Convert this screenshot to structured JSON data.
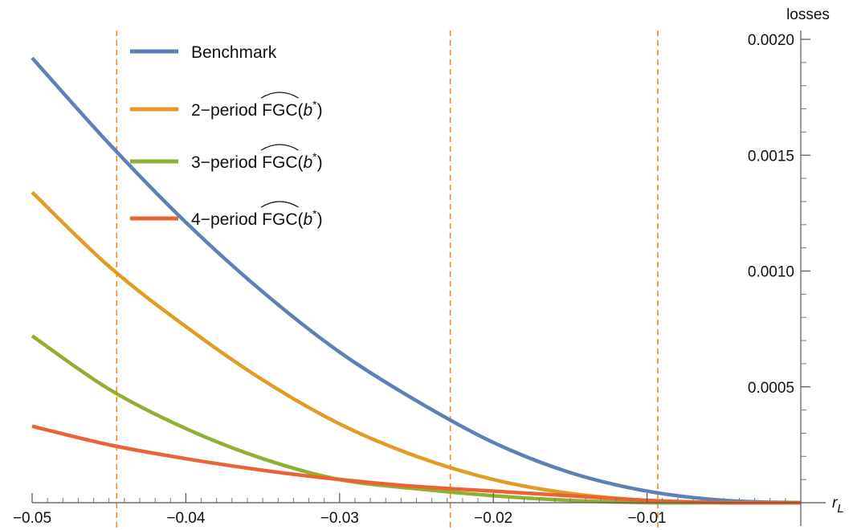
{
  "chart_data": {
    "type": "line",
    "title": "",
    "xlabel": "r",
    "xlabel_sub": "L",
    "ylabel": "losses",
    "xlim": [
      -0.05,
      0.0
    ],
    "ylim": [
      0,
      0.002
    ],
    "x_ticks": [
      -0.05,
      -0.04,
      -0.03,
      -0.02,
      -0.01
    ],
    "x_tick_labels": [
      "−0.05",
      "−0.04",
      "−0.03",
      "−0.02",
      "−0.01"
    ],
    "y_ticks": [
      0.0005,
      0.001,
      0.0015,
      0.002
    ],
    "y_tick_labels": [
      "0.0005",
      "0.0010",
      "0.0015",
      "0.0020"
    ],
    "y_axis_position": "right",
    "legend_position": "top-left",
    "vertical_reference_lines": [
      {
        "x": -0.0445,
        "color": "#F28A1E",
        "style": "dashed"
      },
      {
        "x": -0.0228,
        "color": "#F28A1E",
        "style": "dashed"
      },
      {
        "x": -0.0093,
        "color": "#F28A1E",
        "style": "dashed"
      }
    ],
    "x": [
      -0.05,
      -0.045,
      -0.04,
      -0.035,
      -0.03,
      -0.025,
      -0.02,
      -0.015,
      -0.01,
      -0.005,
      0.0
    ],
    "series": [
      {
        "name": "Benchmark",
        "color": "#5E81B5",
        "values": [
          0.00192,
          0.00155,
          0.00121,
          0.00091,
          0.00065,
          0.00044,
          0.00026,
          0.00013,
          5e-05,
          1e-05,
          0.0
        ]
      },
      {
        "name": "2-period FGC(b*)",
        "color": "#E19C24",
        "values": [
          0.00134,
          0.00102,
          0.00076,
          0.00053,
          0.00034,
          0.0002,
          0.0001,
          4e-05,
          1e-05,
          0.0,
          0.0
        ]
      },
      {
        "name": "3-period FGC(b*)",
        "color": "#8FB032",
        "values": [
          0.00072,
          0.00049,
          0.00032,
          0.00019,
          0.0001,
          6e-05,
          3e-05,
          1e-05,
          0.0,
          0.0,
          0.0
        ]
      },
      {
        "name": "4-period FGC(b*)",
        "color": "#EB6235",
        "values": [
          0.00033,
          0.00025,
          0.00019,
          0.00014,
          0.0001,
          7e-05,
          5e-05,
          3e-05,
          1e-05,
          0.0,
          0.0
        ]
      }
    ],
    "legend": [
      {
        "prefix": "",
        "label": "Benchmark"
      },
      {
        "prefix": "2−period ",
        "label": "FGC",
        "arg_pre": "(",
        "arg_var": "b",
        "arg_sup": "*",
        "arg_post": ")"
      },
      {
        "prefix": "3−period ",
        "label": "FGC",
        "arg_pre": "(",
        "arg_var": "b",
        "arg_sup": "*",
        "arg_post": ")"
      },
      {
        "prefix": "4−period ",
        "label": "FGC",
        "arg_pre": "(",
        "arg_var": "b",
        "arg_sup": "*",
        "arg_post": ")"
      }
    ]
  }
}
